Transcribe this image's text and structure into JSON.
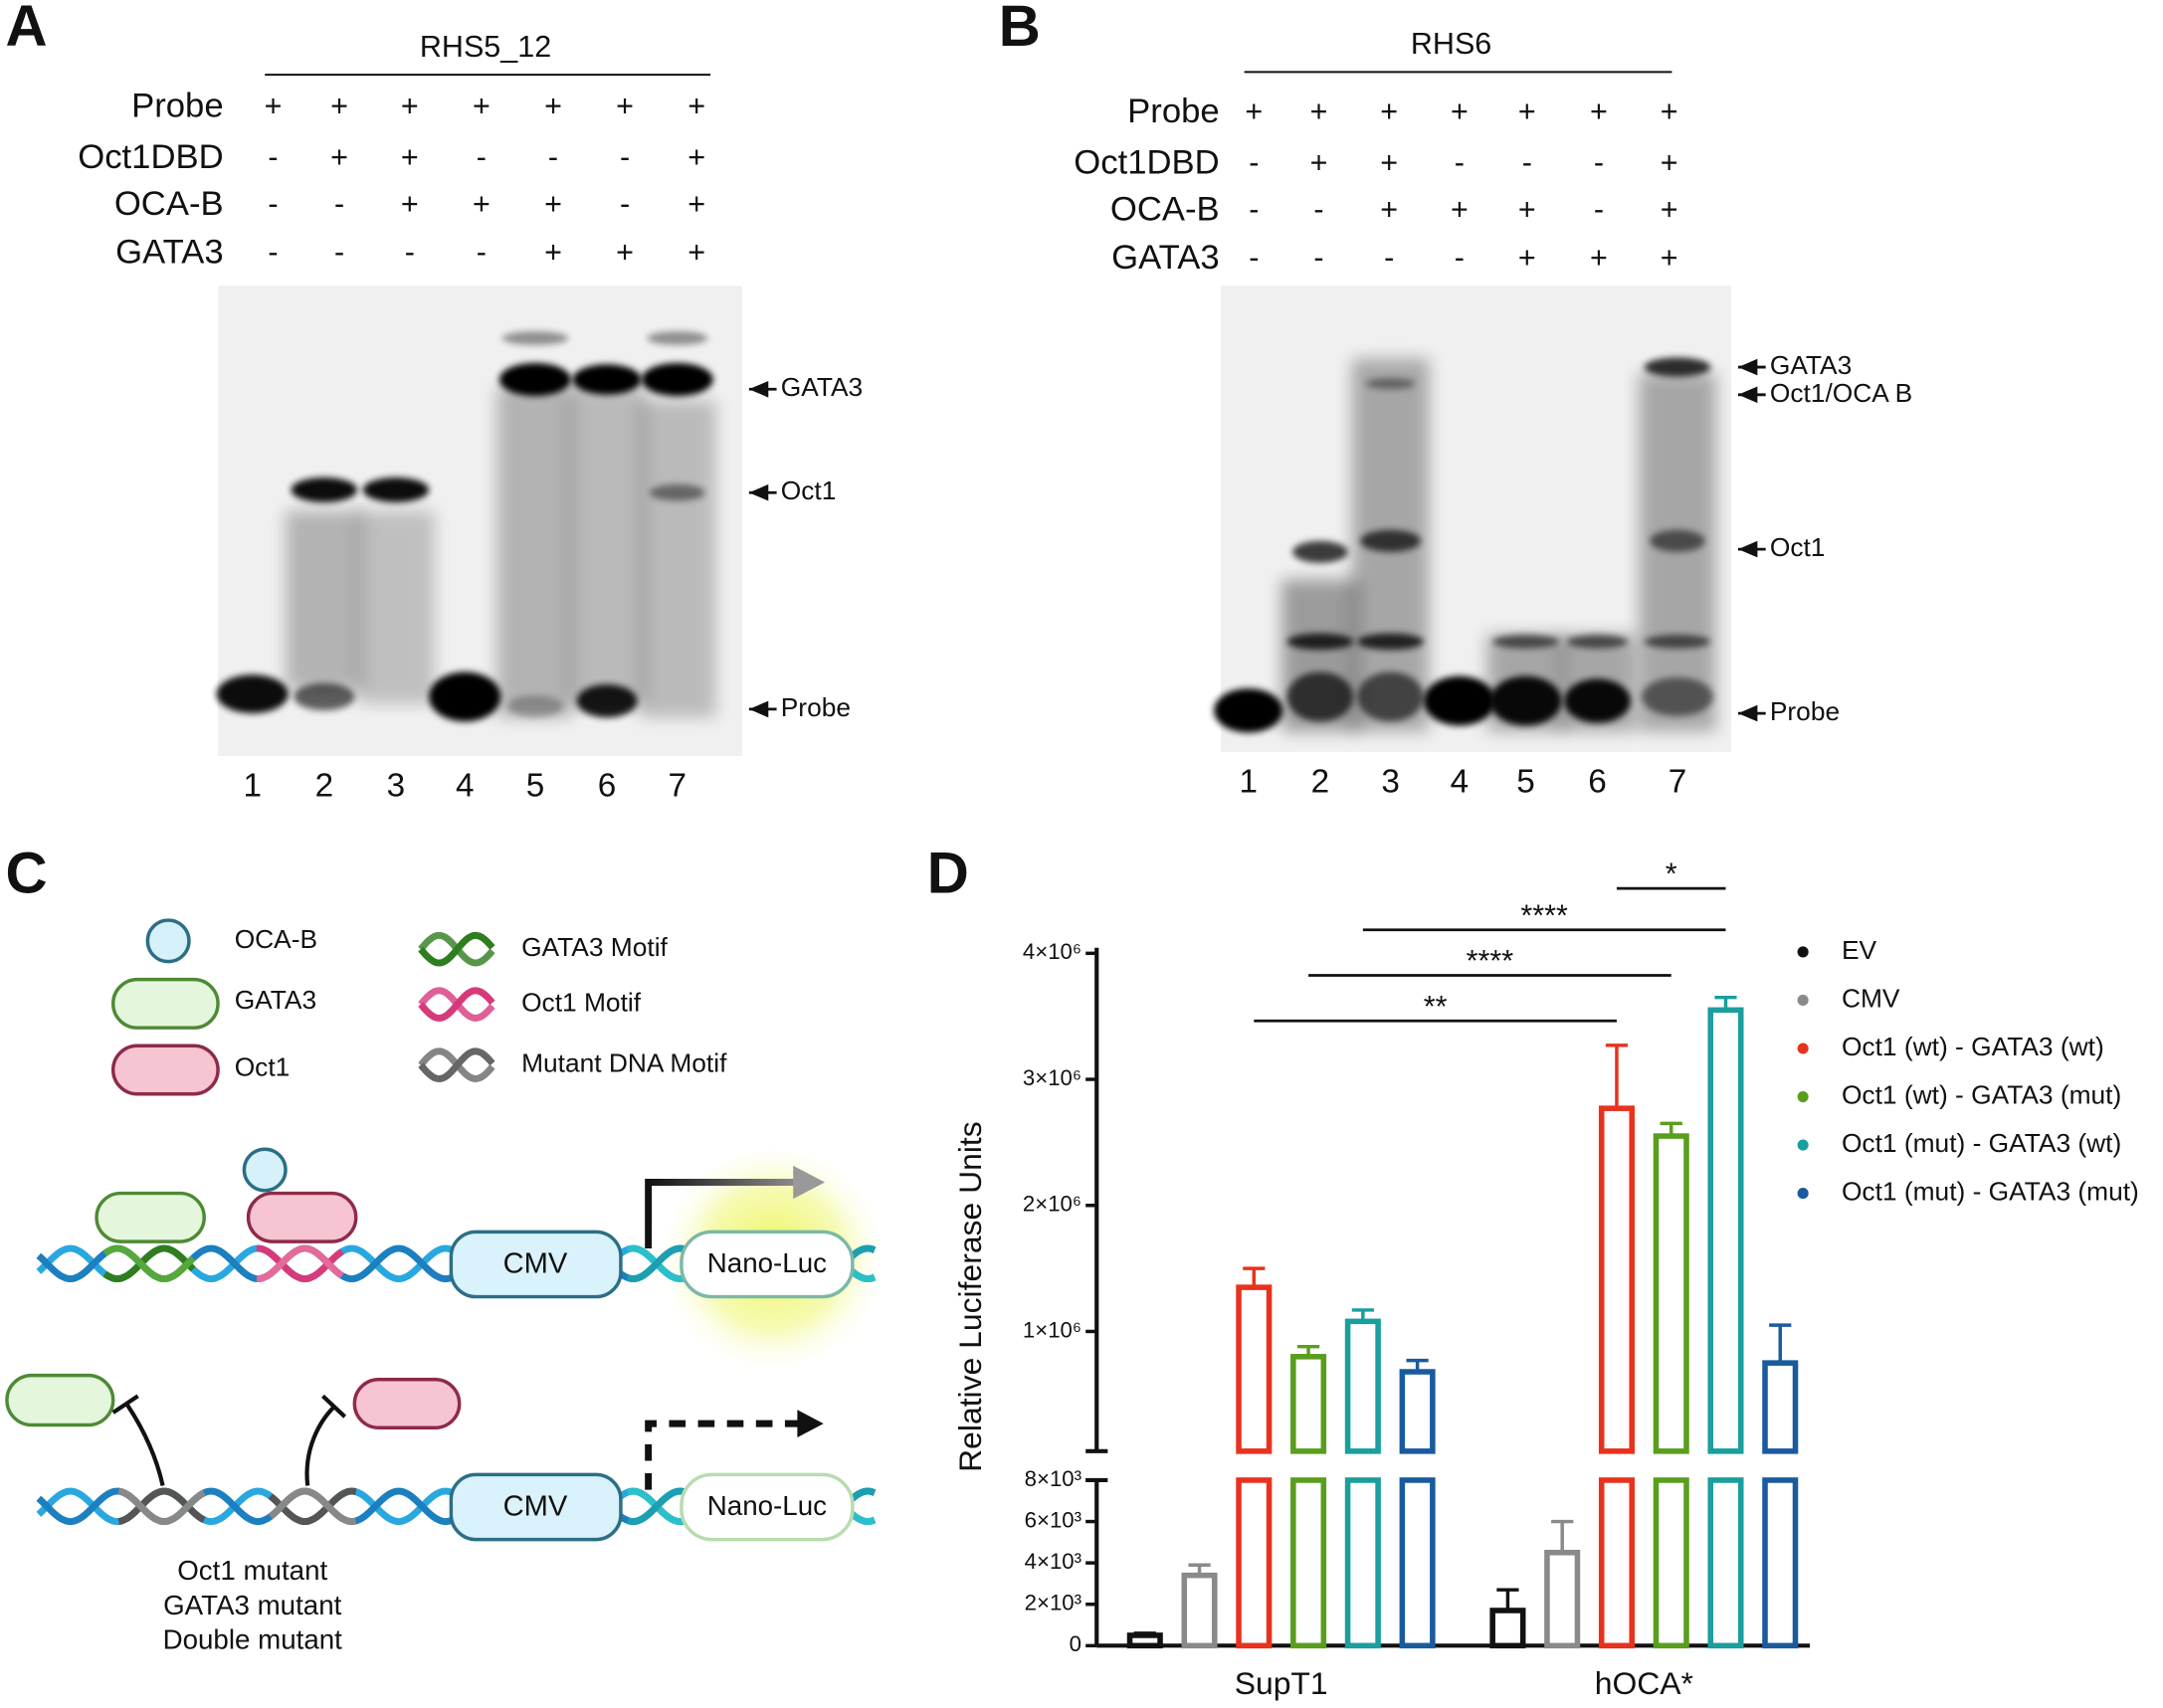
{
  "panel_a": {
    "letter": "A",
    "construct": "RHS5_12",
    "rows": [
      {
        "label": "Probe",
        "signs": [
          "+",
          "+",
          "+",
          "+",
          "+",
          "+",
          "+"
        ]
      },
      {
        "label": "Oct1DBD",
        "signs": [
          "-",
          "+",
          "+",
          "-",
          "-",
          "-",
          "+"
        ]
      },
      {
        "label": "OCA-B",
        "signs": [
          "-",
          "-",
          "+",
          "+",
          "+",
          "-",
          "+"
        ]
      },
      {
        "label": "GATA3",
        "signs": [
          "-",
          "-",
          "-",
          "-",
          "+",
          "+",
          "+"
        ]
      }
    ],
    "lanes": [
      "1",
      "2",
      "3",
      "4",
      "5",
      "6",
      "7"
    ],
    "bands": [
      "GATA3",
      "Oct1",
      "Probe"
    ]
  },
  "panel_b": {
    "letter": "B",
    "construct": "RHS6",
    "rows": [
      {
        "label": "Probe",
        "signs": [
          "+",
          "+",
          "+",
          "+",
          "+",
          "+",
          "+"
        ]
      },
      {
        "label": "Oct1DBD",
        "signs": [
          "-",
          "+",
          "+",
          "-",
          "-",
          "-",
          "+"
        ]
      },
      {
        "label": "OCA-B",
        "signs": [
          "-",
          "-",
          "+",
          "+",
          "+",
          "-",
          "+"
        ]
      },
      {
        "label": "GATA3",
        "signs": [
          "-",
          "-",
          "-",
          "-",
          "+",
          "+",
          "+"
        ]
      }
    ],
    "lanes": [
      "1",
      "2",
      "3",
      "4",
      "5",
      "6",
      "7"
    ],
    "bands": [
      "GATA3",
      "Oct1/OCA B",
      "Oct1",
      "Probe"
    ]
  },
  "panel_c": {
    "letter": "C",
    "legend": [
      "OCA-B",
      "GATA3",
      "Oct1",
      "GATA3 Motif",
      "Oct1 Motif",
      "Mutant DNA Motif"
    ],
    "promoter": "CMV",
    "reporter": "Nano-Luc",
    "mutants": [
      "Oct1 mutant",
      "GATA3 mutant",
      "Double mutant"
    ]
  },
  "panel_d": {
    "letter": "D",
    "chart_data": {
      "type": "bar",
      "ylabel": "Relative Luciferase Units",
      "categories": [
        "SupT1",
        "hOCA*"
      ],
      "series": [
        {
          "name": "EV",
          "color": "#111111",
          "values": [
            500,
            1700
          ],
          "errors": [
            100,
            1000
          ]
        },
        {
          "name": "CMV",
          "color": "#8a8a8a",
          "values": [
            3400,
            4500
          ],
          "errors": [
            500,
            1500
          ]
        },
        {
          "name": "Oct1 (wt) - GATA3 (wt)",
          "color": "#e8321e",
          "values": [
            1350000,
            2770000
          ],
          "errors": [
            150000,
            500000
          ]
        },
        {
          "name": "Oct1 (wt) - GATA3 (mut)",
          "color": "#5a9e1e",
          "values": [
            800000,
            2550000
          ],
          "errors": [
            80000,
            100000
          ]
        },
        {
          "name": "Oct1 (mut) - GATA3 (wt)",
          "color": "#1a9e9e",
          "values": [
            1080000,
            3550000
          ],
          "errors": [
            90000,
            100000
          ]
        },
        {
          "name": "Oct1 (mut) - GATA3 (mut)",
          "color": "#1a5a9e",
          "values": [
            680000,
            750000
          ],
          "errors": [
            90000,
            300000
          ]
        }
      ],
      "ylim_lower": [
        0,
        8000
      ],
      "yticks_lower": [
        0,
        {
          "value": 2000,
          "label": "2×10³"
        },
        {
          "value": 4000,
          "label": "4×10³"
        },
        {
          "value": 6000,
          "label": "6×10³"
        },
        {
          "value": 8000,
          "label": "8×10³"
        }
      ],
      "ylim": [
        50000,
        4000000
      ],
      "yticks": [
        {
          "value": 1000000,
          "label": "1×10⁶"
        },
        {
          "value": 2000000,
          "label": "2×10⁶"
        },
        {
          "value": 3000000,
          "label": "3×10⁶"
        },
        {
          "value": 4000000,
          "label": "4×10⁶"
        }
      ],
      "significance": [
        "**",
        "****",
        "****",
        "*"
      ]
    }
  }
}
